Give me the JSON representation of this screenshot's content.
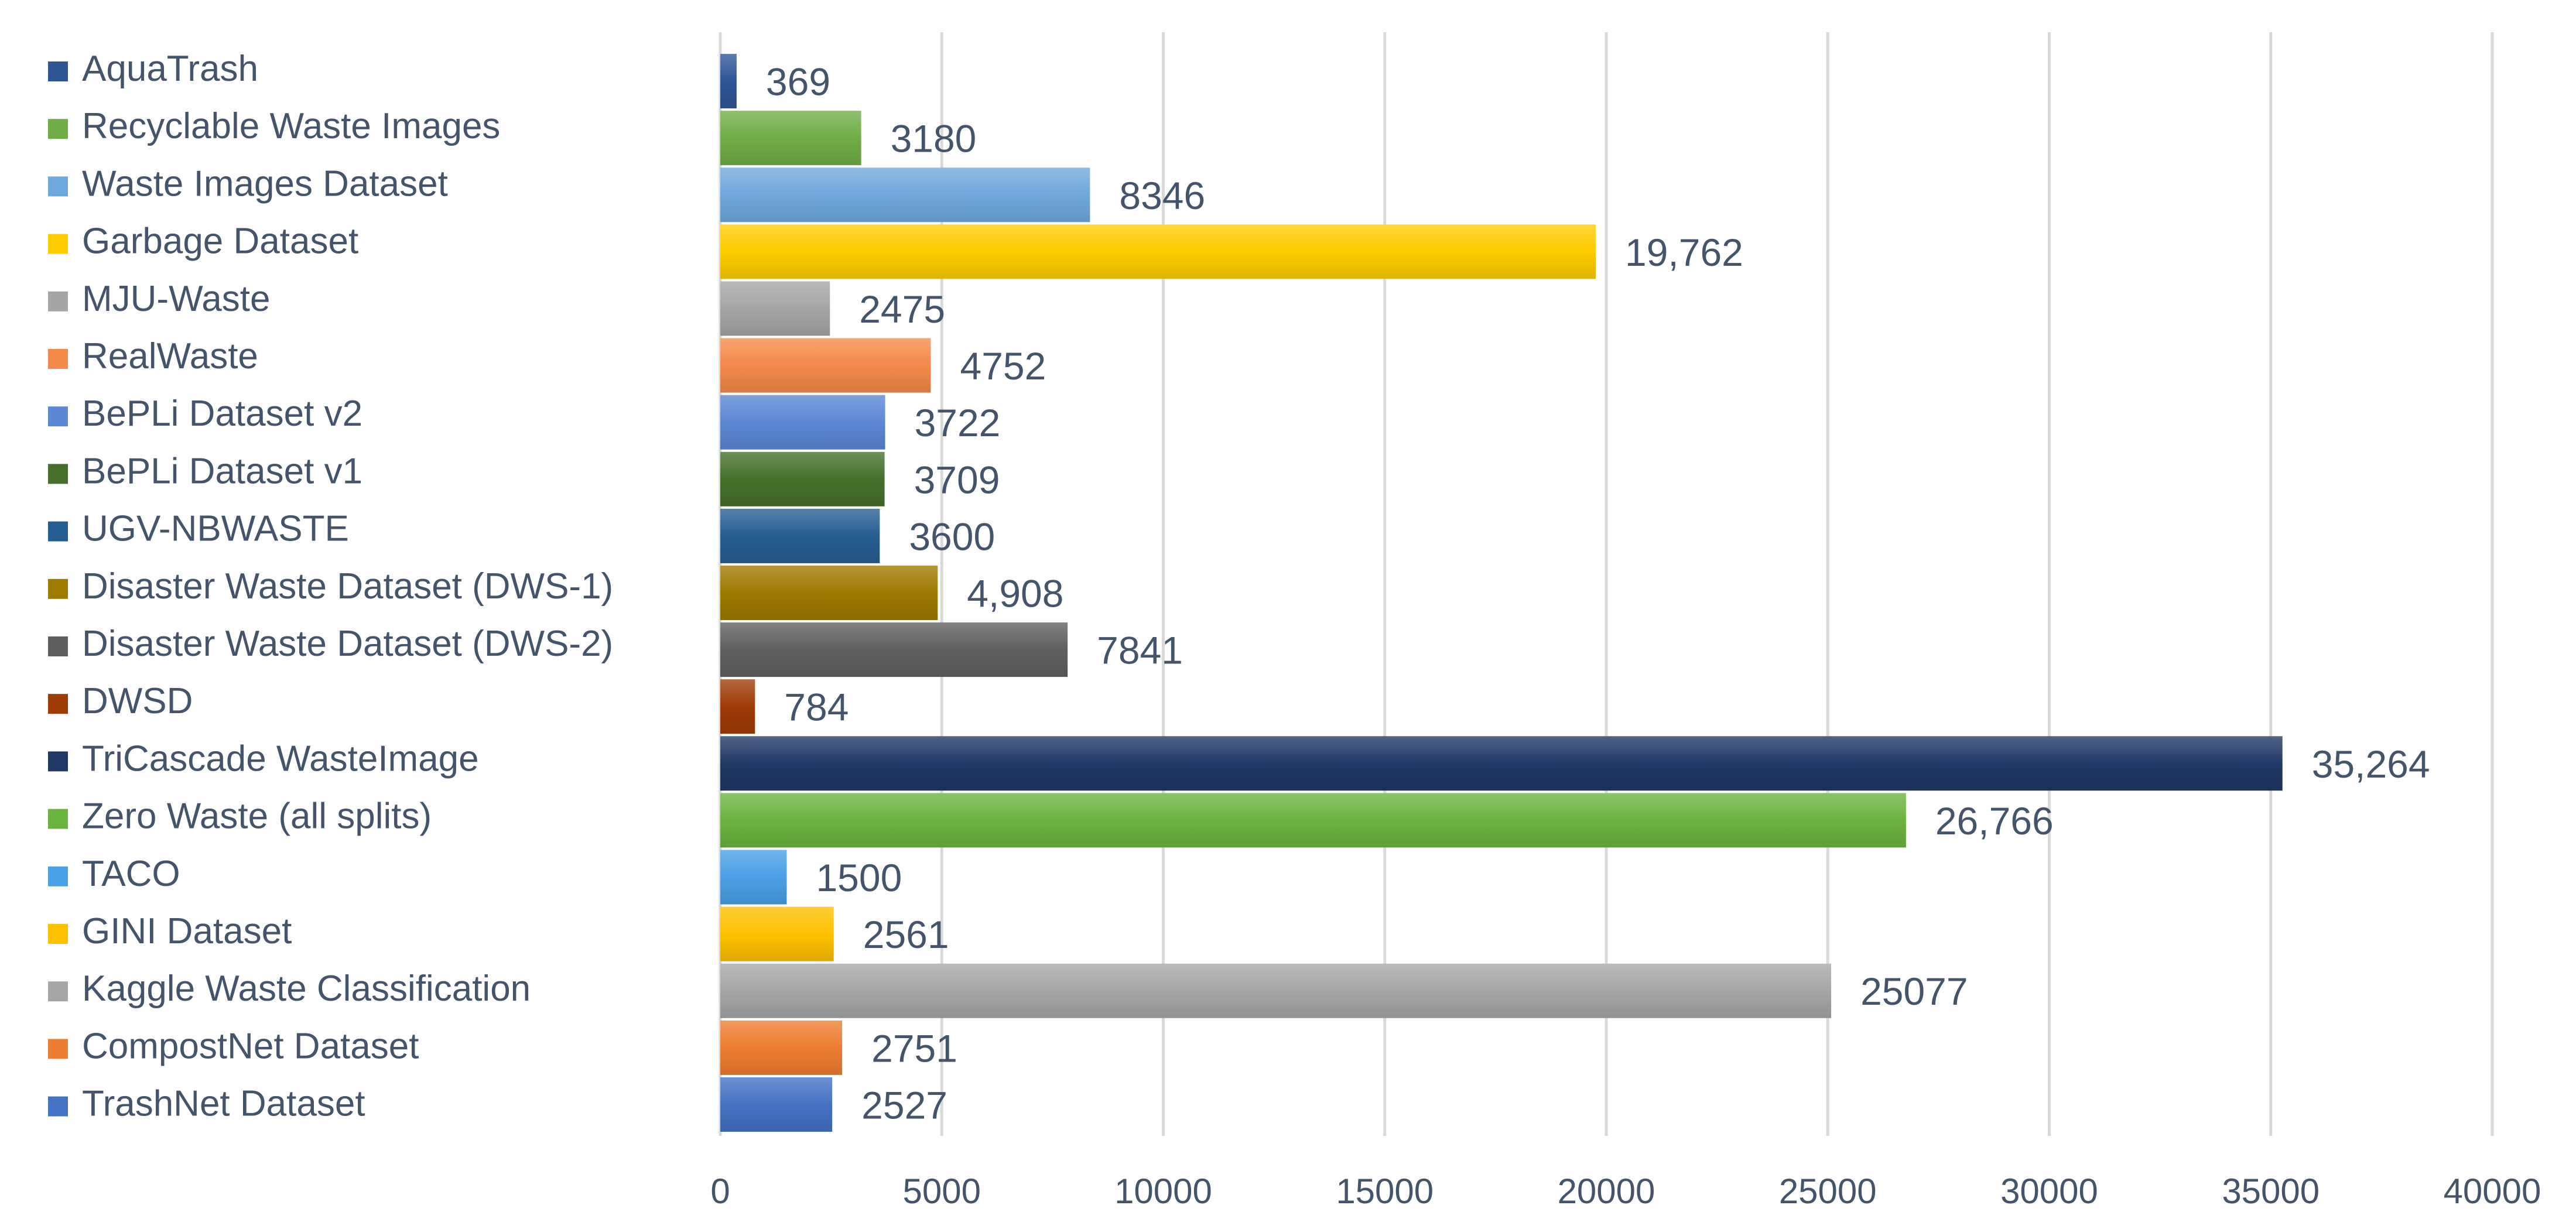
{
  "chart_data": {
    "type": "bar",
    "orientation": "horizontal",
    "title": "",
    "xlabel": "",
    "ylabel": "",
    "xlim": [
      0,
      40000
    ],
    "xticks": [
      0,
      5000,
      10000,
      15000,
      20000,
      25000,
      30000,
      35000,
      40000
    ],
    "xtick_labels": [
      "0",
      "5000",
      "10000",
      "15000",
      "20000",
      "25000",
      "30000",
      "35000",
      "40000"
    ],
    "grid": true,
    "legend_position": "left",
    "series": [
      {
        "name": "AquaTrash",
        "value": 369,
        "label": "369",
        "color": "#2f5597"
      },
      {
        "name": "Recyclable Waste Images",
        "value": 3180,
        "label": "3180",
        "color": "#70ad47"
      },
      {
        "name": "Waste Images Dataset",
        "value": 8346,
        "label": "8346",
        "color": "#6fa8dc"
      },
      {
        "name": "Garbage Dataset",
        "value": 19762,
        "label": "19,762",
        "color": "#ffcc00"
      },
      {
        "name": "MJU-Waste",
        "value": 2475,
        "label": "2475",
        "color": "#a5a5a5"
      },
      {
        "name": "RealWaste",
        "value": 4752,
        "label": "4752",
        "color": "#f4894a"
      },
      {
        "name": "BePLi Dataset v2",
        "value": 3722,
        "label": "3722",
        "color": "#5b87d4"
      },
      {
        "name": "BePLi Dataset v1",
        "value": 3709,
        "label": "3709",
        "color": "#456f2a"
      },
      {
        "name": "UGV-NBWASTE",
        "value": 3600,
        "label": "3600",
        "color": "#255e91"
      },
      {
        "name": "Disaster Waste Dataset (DWS-1)",
        "value": 4908,
        "label": "4,908",
        "color": "#9e7a00"
      },
      {
        "name": "Disaster Waste Dataset (DWS-2)",
        "value": 7841,
        "label": "7841",
        "color": "#5f5f5f"
      },
      {
        "name": "DWSD",
        "value": 784,
        "label": "784",
        "color": "#9e3b06"
      },
      {
        "name": "TriCascade WasteImage",
        "value": 35264,
        "label": "35,264",
        "color": "#203864"
      },
      {
        "name": "Zero Waste (all splits)",
        "value": 26766,
        "label": "26,766",
        "color": "#6bb33f"
      },
      {
        "name": "TACO",
        "value": 1500,
        "label": "1500",
        "color": "#4aa0e6"
      },
      {
        "name": "GINI Dataset",
        "value": 2561,
        "label": "2561",
        "color": "#ffc000"
      },
      {
        "name": "Kaggle Waste Classification",
        "value": 25077,
        "label": "25077",
        "color": "#a6a6a6"
      },
      {
        "name": "CompostNet Dataset",
        "value": 2751,
        "label": "2751",
        "color": "#ed7d31"
      },
      {
        "name": "TrashNet Dataset",
        "value": 2527,
        "label": "2527",
        "color": "#4472c4"
      }
    ]
  }
}
